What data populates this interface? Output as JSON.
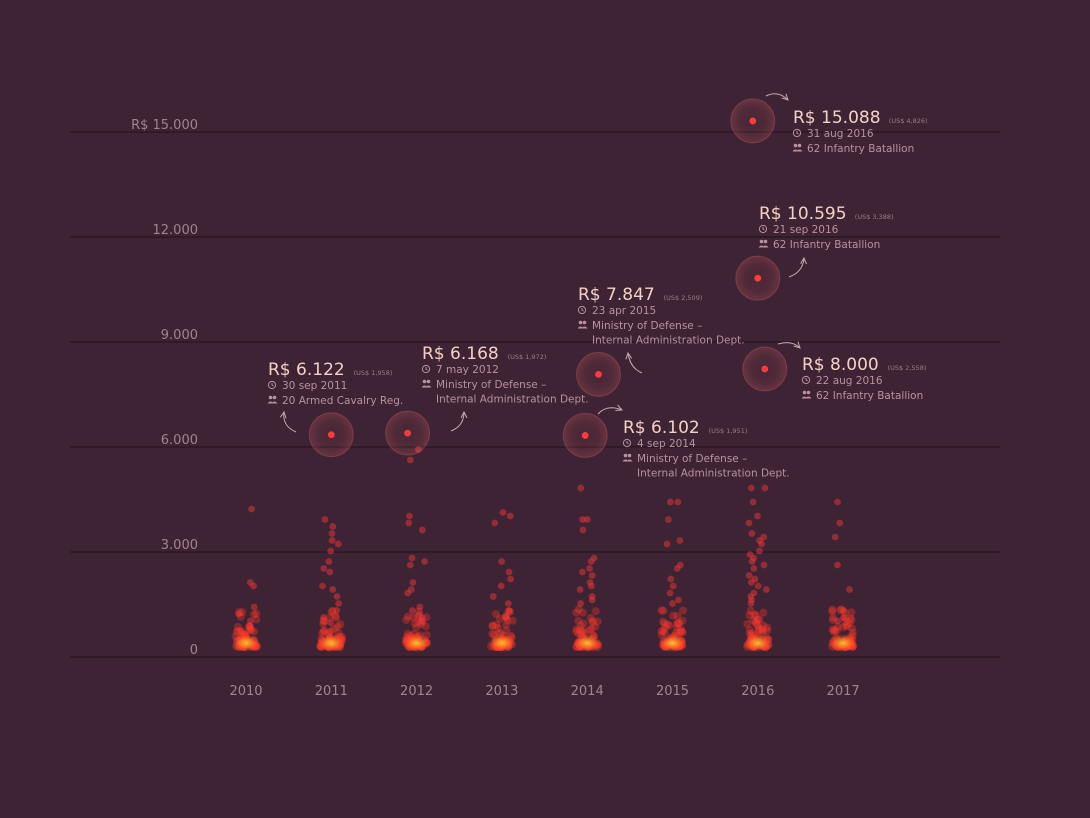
{
  "chart_data": {
    "type": "scatter",
    "y_ticks": [
      {
        "value": 0,
        "label": "0"
      },
      {
        "value": 3000,
        "label": "3.000"
      },
      {
        "value": 6000,
        "label": "6.000"
      },
      {
        "value": 9000,
        "label": "9.000"
      },
      {
        "value": 12000,
        "label": "12.000"
      },
      {
        "value": 15000,
        "label": "R$ 15.000"
      }
    ],
    "ylim": [
      0,
      15000
    ],
    "years": [
      "2010",
      "2011",
      "2012",
      "2013",
      "2014",
      "2015",
      "2016",
      "2017"
    ],
    "colors": {
      "background": "#3d2334",
      "point": "#ff3a3a",
      "glow": "#ff9a1e",
      "halo": "#ff6a6a"
    },
    "outliers": [
      {
        "year": "2010",
        "values": [
          4000,
          1900,
          1800,
          1200,
          1000,
          800,
          650,
          500
        ]
      },
      {
        "year": "2011",
        "values": [
          3700,
          3500,
          3300,
          3100,
          3000,
          2800,
          2500,
          2300,
          2200,
          1800,
          1700,
          1500,
          1300,
          1100,
          900,
          750
        ]
      },
      {
        "year": "2012",
        "values": [
          5400,
          5700,
          3800,
          3600,
          3400,
          2600,
          2500,
          2400,
          1900,
          1700,
          1600,
          1200,
          1100,
          900,
          800
        ]
      },
      {
        "year": "2013",
        "values": [
          3900,
          3800,
          3600,
          2500,
          2200,
          2000,
          1800,
          1500,
          1300,
          1100,
          900
        ]
      },
      {
        "year": "2014",
        "values": [
          4600,
          3700,
          3700,
          3400,
          2600,
          2500,
          2300,
          2200,
          2100,
          1900,
          1800,
          1700,
          1500,
          1400,
          1300
        ]
      },
      {
        "year": "2015",
        "values": [
          4200,
          4200,
          3700,
          3100,
          3000,
          2400,
          2300,
          2000,
          1800,
          1600,
          1400,
          1300
        ]
      },
      {
        "year": "2016",
        "values": [
          4600,
          4600,
          4200,
          3800,
          3600,
          3300,
          3200,
          3100,
          3000,
          2800,
          2700,
          2600,
          2500,
          2400,
          2300,
          2100,
          2000,
          1900,
          1800,
          1700,
          1600,
          1500,
          1400,
          1300
        ]
      },
      {
        "year": "2017",
        "values": [
          4200,
          3600,
          3200,
          2400,
          1700,
          1100,
          900,
          800
        ]
      }
    ],
    "highlights": [
      {
        "year": "2011",
        "value": 6122,
        "amount": "R$ 6.122",
        "usd": "(US$ 1,958)",
        "date": "30 sep 2011",
        "unit": [
          "20 Armed Cavalry Reg."
        ]
      },
      {
        "year": "2012",
        "value": 6168,
        "amount": "R$ 6.168",
        "usd": "(US$ 1,972)",
        "date": "7 may 2012",
        "unit": [
          "Ministry of Defense –",
          "Internal Administration Dept."
        ]
      },
      {
        "year": "2014",
        "value": 6102,
        "amount": "R$ 6.102",
        "usd": "(US$ 1,951)",
        "date": "4 sep 2014",
        "unit": [
          "Ministry of Defense –",
          "Internal Administration Dept."
        ]
      },
      {
        "year": "2015",
        "value": 7847,
        "amount": "R$ 7.847",
        "usd": "(US$ 2,509)",
        "date": "23 apr 2015",
        "unit": [
          "Ministry of Defense –",
          "Internal Administration Dept."
        ]
      },
      {
        "year": "2016",
        "value": 10595,
        "amount": "R$ 10.595",
        "usd": "(US$ 3,388)",
        "date": "21 sep 2016",
        "unit": [
          "62 Infantry Batallion"
        ]
      },
      {
        "year": "2016",
        "value": 8000,
        "amount": "R$ 8.000",
        "usd": "(US$ 2,558)",
        "date": "22 aug 2016",
        "unit": [
          "62 Infantry Batallion"
        ]
      },
      {
        "year": "2016",
        "value": 15088,
        "amount": "R$ 15.088",
        "usd": "(US$ 4,826)",
        "date": "31 aug 2016",
        "unit": [
          "62 Infantry Batallion"
        ]
      }
    ]
  }
}
